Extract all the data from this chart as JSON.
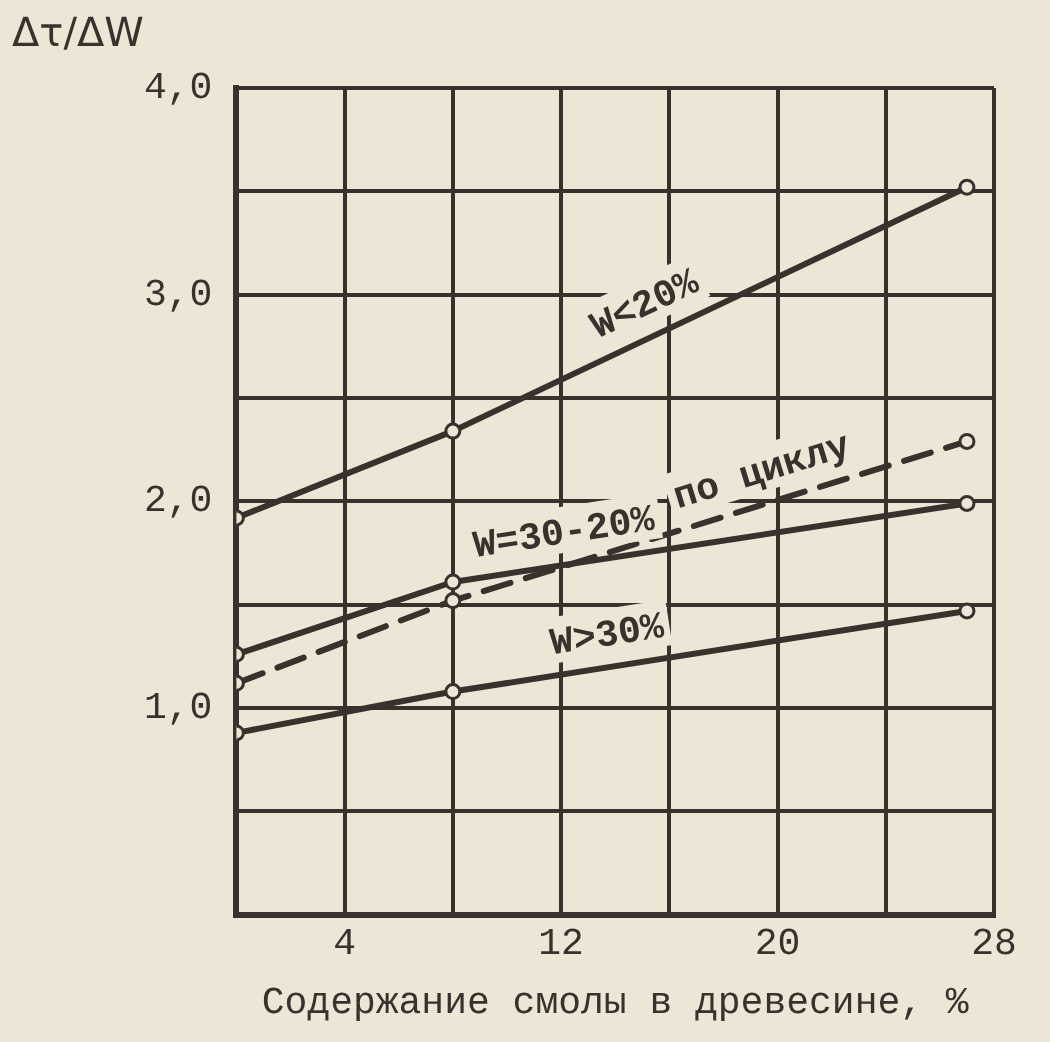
{
  "chart_data": {
    "type": "line",
    "xlabel": "Содержание смолы в древесине, %",
    "ylabel": "Δτ/ΔW",
    "x": [
      0,
      8,
      27
    ],
    "series": [
      {
        "name": "W<20%",
        "color": "#3a302c",
        "values": [
          1.92,
          2.34,
          3.52
        ]
      },
      {
        "name": "W=30-20%",
        "color": "#3a302c",
        "values": [
          1.26,
          1.61,
          1.99
        ]
      },
      {
        "name": "по циклу",
        "color": "#3a302c",
        "values": [
          1.12,
          1.52,
          2.29
        ],
        "line_style": "dashed"
      },
      {
        "name": "W>30%",
        "color": "#3a302c",
        "values": [
          0.88,
          1.08,
          1.47
        ]
      }
    ],
    "xlim": [
      0,
      28
    ],
    "xticks": [
      {
        "value": 0,
        "label": null
      },
      4,
      {
        "value": 8,
        "label": null
      },
      12,
      {
        "value": 16,
        "label": null
      },
      20,
      {
        "value": 24,
        "label": null
      },
      28
    ],
    "ylim": [
      0,
      4
    ],
    "yticks": [
      {
        "value": 0,
        "label": null
      },
      {
        "value": 0.5,
        "label": null
      },
      {
        "value": 1,
        "label": "1,0"
      },
      {
        "value": 1.5,
        "label": null
      },
      {
        "value": 2,
        "label": "2,0"
      },
      {
        "value": 2.5,
        "label": null
      },
      {
        "value": 3,
        "label": "3,0"
      },
      {
        "value": 3.5,
        "label": null
      },
      {
        "value": 4,
        "label": "4,0"
      }
    ],
    "grid": true,
    "legend": false,
    "marker": "circle",
    "line_style": "solid"
  }
}
